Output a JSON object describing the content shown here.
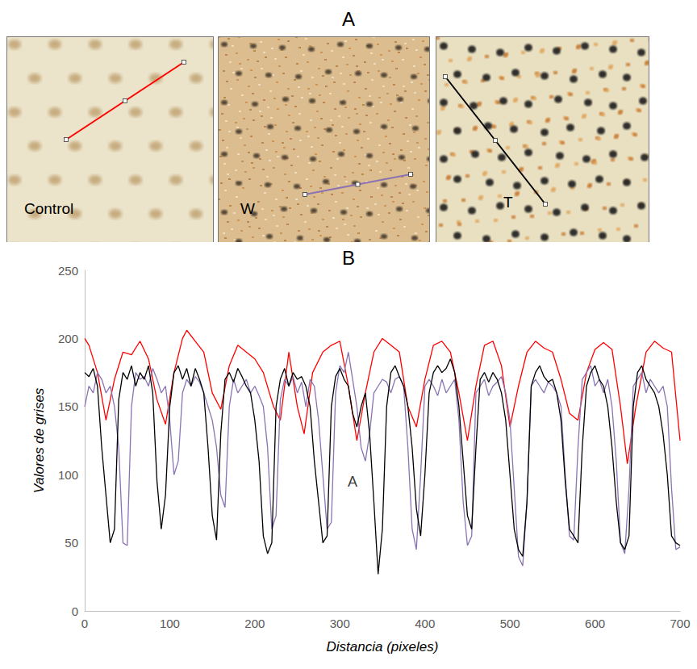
{
  "panel_a": {
    "title": "A",
    "images": [
      {
        "label": "Control"
      },
      {
        "label": "W"
      },
      {
        "label": "T"
      }
    ]
  },
  "chart_data": {
    "type": "line",
    "title": "B",
    "x_label": "Distancia (pixeles)",
    "y_label": "Valores de grises",
    "xlim": [
      0,
      700
    ],
    "xticks": [
      0,
      100,
      200,
      300,
      400,
      500,
      600,
      700
    ],
    "ylim": [
      0,
      250
    ],
    "yticks": [
      0,
      50,
      100,
      150,
      200,
      250
    ],
    "grid": false,
    "annotations": [
      {
        "text": "A",
        "x": 315,
        "y": 95
      }
    ],
    "series": [
      {
        "color": "#ff0000",
        "x": [
          0,
          5,
          15,
          25,
          35,
          45,
          55,
          65,
          75,
          85,
          95,
          105,
          115,
          120,
          130,
          140,
          150,
          160,
          170,
          180,
          190,
          200,
          210,
          222,
          230,
          240,
          250,
          258,
          268,
          280,
          290,
          300,
          310,
          320,
          330,
          340,
          350,
          360,
          370,
          380,
          390,
          400,
          410,
          420,
          430,
          440,
          450,
          460,
          470,
          480,
          490,
          500,
          510,
          520,
          530,
          540,
          550,
          560,
          570,
          580,
          590,
          600,
          610,
          620,
          630,
          638,
          648,
          660,
          670,
          680,
          690,
          700
        ],
        "values": [
          200,
          195,
          175,
          140,
          170,
          190,
          188,
          198,
          185,
          155,
          137,
          175,
          200,
          206,
          198,
          190,
          160,
          148,
          180,
          195,
          190,
          185,
          175,
          150,
          140,
          190,
          150,
          130,
          175,
          190,
          195,
          198,
          165,
          125,
          160,
          190,
          200,
          195,
          190,
          150,
          135,
          170,
          195,
          198,
          190,
          160,
          125,
          165,
          195,
          198,
          180,
          135,
          165,
          190,
          198,
          193,
          190,
          170,
          145,
          140,
          175,
          192,
          197,
          192,
          150,
          108,
          150,
          190,
          198,
          193,
          190,
          125
        ]
      },
      {
        "color": "#8a73b3",
        "x": [
          0,
          5,
          10,
          15,
          20,
          25,
          30,
          35,
          40,
          45,
          50,
          55,
          60,
          65,
          70,
          75,
          80,
          85,
          90,
          95,
          100,
          105,
          110,
          115,
          120,
          125,
          130,
          135,
          140,
          145,
          150,
          155,
          160,
          165,
          170,
          175,
          180,
          185,
          190,
          195,
          200,
          205,
          210,
          215,
          220,
          225,
          230,
          235,
          240,
          245,
          250,
          255,
          260,
          265,
          270,
          275,
          280,
          285,
          290,
          295,
          300,
          305,
          310,
          315,
          320,
          325,
          330,
          335,
          340,
          345,
          350,
          355,
          360,
          365,
          370,
          375,
          380,
          385,
          390,
          395,
          400,
          405,
          410,
          415,
          420,
          425,
          430,
          435,
          440,
          445,
          450,
          455,
          460,
          465,
          470,
          475,
          480,
          485,
          490,
          495,
          500,
          505,
          510,
          515,
          520,
          525,
          530,
          535,
          540,
          545,
          550,
          555,
          560,
          565,
          570,
          575,
          580,
          585,
          590,
          595,
          600,
          605,
          610,
          615,
          620,
          625,
          630,
          635,
          640,
          645,
          650,
          655,
          660,
          665,
          670,
          675,
          680,
          685,
          690,
          695,
          700
        ],
        "values": [
          150,
          165,
          160,
          175,
          170,
          160,
          165,
          150,
          120,
          50,
          48,
          150,
          175,
          170,
          172,
          165,
          178,
          170,
          160,
          165,
          140,
          100,
          110,
          160,
          170,
          165,
          172,
          168,
          160,
          150,
          140,
          120,
          85,
          76,
          150,
          170,
          160,
          165,
          170,
          160,
          165,
          158,
          150,
          120,
          60,
          70,
          155,
          170,
          165,
          172,
          160,
          168,
          150,
          170,
          165,
          140,
          100,
          60,
          65,
          160,
          180,
          175,
          190,
          170,
          150,
          120,
          110,
          130,
          160,
          165,
          170,
          168,
          160,
          170,
          172,
          165,
          120,
          60,
          45,
          100,
          165,
          170,
          165,
          158,
          170,
          160,
          165,
          170,
          140,
          80,
          48,
          55,
          160,
          165,
          170,
          158,
          165,
          168,
          172,
          160,
          140,
          90,
          40,
          33,
          80,
          165,
          170,
          165,
          160,
          168,
          165,
          160,
          150,
          100,
          55,
          52,
          120,
          170,
          175,
          180,
          165,
          170,
          160,
          170,
          150,
          110,
          50,
          42,
          90,
          165,
          170,
          175,
          160,
          170,
          165,
          160,
          165,
          150,
          90,
          45,
          47
        ]
      },
      {
        "color": "#000000",
        "x": [
          0,
          5,
          10,
          15,
          20,
          25,
          30,
          35,
          40,
          45,
          50,
          55,
          60,
          65,
          70,
          75,
          80,
          85,
          90,
          95,
          100,
          105,
          110,
          115,
          120,
          125,
          130,
          135,
          140,
          145,
          150,
          155,
          160,
          165,
          170,
          175,
          180,
          185,
          190,
          195,
          200,
          205,
          210,
          215,
          220,
          225,
          230,
          235,
          240,
          245,
          250,
          255,
          260,
          265,
          270,
          275,
          280,
          285,
          290,
          295,
          300,
          305,
          310,
          315,
          320,
          325,
          330,
          335,
          340,
          345,
          350,
          355,
          360,
          365,
          370,
          375,
          380,
          385,
          390,
          395,
          400,
          405,
          410,
          415,
          420,
          425,
          430,
          435,
          440,
          445,
          450,
          455,
          460,
          465,
          470,
          475,
          480,
          485,
          490,
          495,
          500,
          505,
          510,
          515,
          520,
          525,
          530,
          535,
          540,
          545,
          550,
          555,
          560,
          565,
          570,
          575,
          580,
          585,
          590,
          595,
          600,
          605,
          610,
          615,
          620,
          625,
          630,
          635,
          640,
          645,
          650,
          655,
          660,
          665,
          670,
          675,
          680,
          685,
          690,
          695,
          700
        ],
        "values": [
          175,
          172,
          178,
          165,
          120,
          85,
          50,
          60,
          155,
          175,
          170,
          180,
          165,
          175,
          170,
          180,
          160,
          95,
          60,
          85,
          150,
          175,
          180,
          170,
          178,
          165,
          178,
          170,
          160,
          120,
          70,
          52,
          130,
          170,
          175,
          168,
          178,
          172,
          165,
          160,
          140,
          110,
          55,
          42,
          50,
          150,
          170,
          178,
          165,
          175,
          170,
          172,
          165,
          150,
          110,
          80,
          50,
          55,
          150,
          172,
          178,
          170,
          165,
          145,
          135,
          150,
          160,
          130,
          80,
          27,
          60,
          150,
          175,
          180,
          172,
          165,
          150,
          120,
          75,
          55,
          100,
          160,
          175,
          180,
          175,
          178,
          185,
          175,
          150,
          110,
          70,
          60,
          120,
          170,
          175,
          168,
          175,
          170,
          160,
          140,
          100,
          60,
          45,
          40,
          80,
          165,
          175,
          180,
          172,
          168,
          170,
          160,
          140,
          95,
          60,
          55,
          50,
          120,
          165,
          175,
          180,
          170,
          165,
          150,
          120,
          80,
          50,
          45,
          55,
          150,
          175,
          180,
          170,
          165,
          160,
          150,
          130,
          100,
          55,
          50,
          48
        ]
      }
    ]
  }
}
